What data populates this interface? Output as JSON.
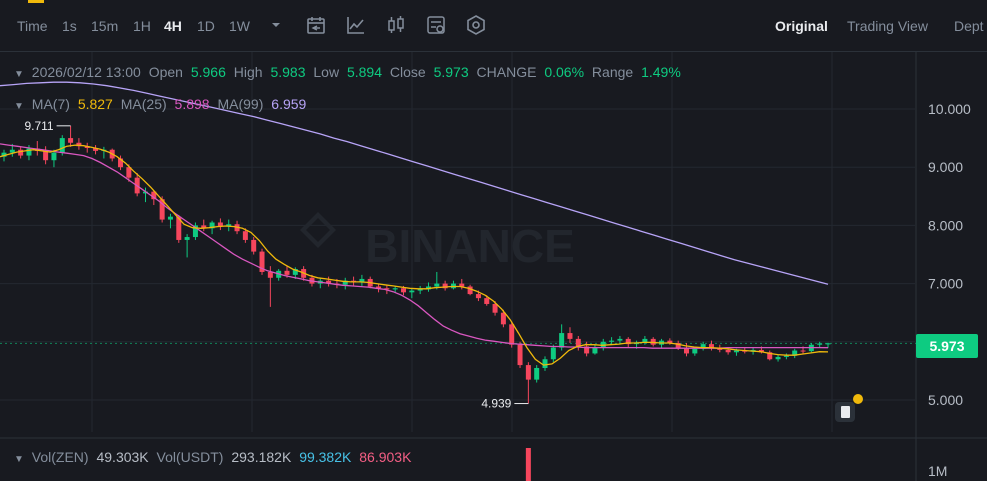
{
  "toolbar": {
    "timeframes": [
      "Time",
      "1s",
      "15m",
      "1H",
      "4H",
      "1D",
      "1W"
    ],
    "active_timeframe": "4H",
    "views": [
      "Original",
      "Trading View",
      "Dept"
    ],
    "active_view": "Original",
    "icons": [
      "dropdown-caret-icon",
      "interval-calendar-icon",
      "indicator-chart-icon",
      "candle-type-icon",
      "settings-sliders-icon",
      "hexagon-settings-icon"
    ]
  },
  "ohlc": {
    "date": "2026/02/12 13:00",
    "open_label": "Open",
    "open": "5.966",
    "high_label": "High",
    "high": "5.983",
    "low_label": "Low",
    "low": "5.894",
    "close_label": "Close",
    "close": "5.973",
    "change_label": "CHANGE",
    "change": "0.06%",
    "range_label": "Range",
    "range": "1.49%"
  },
  "ma": {
    "ma7_label": "MA(7)",
    "ma7": "5.827",
    "ma25_label": "MA(25)",
    "ma25": "5.898",
    "ma99_label": "MA(99)",
    "ma99": "6.959"
  },
  "volume": {
    "zen_label": "Vol(ZEN)",
    "zen": "49.303K",
    "usdt_label": "Vol(USDT)",
    "usdt": "293.182K",
    "ma1": "99.382K",
    "ma2": "86.903K",
    "axis_label": "1M"
  },
  "watermark": "BINANCE",
  "current_price": "5.973",
  "colors": {
    "up": "#0ecb81",
    "down": "#f6465d",
    "ma7": "#f0b90b",
    "ma25": "#d957c0",
    "ma99": "#b7a4f7",
    "bg": "#181a20"
  },
  "chart_data": {
    "type": "line",
    "y_ticks": [
      "10.000",
      "9.000",
      "8.000",
      "7.000",
      "5.000"
    ],
    "ylim": [
      4.6,
      10.6
    ],
    "high_marker": "9.711",
    "low_marker": "4.939",
    "high_value": 9.711,
    "low_value": 4.939,
    "candles": [
      [
        9.18,
        9.3,
        9.1,
        9.25
      ],
      [
        9.25,
        9.4,
        9.18,
        9.3
      ],
      [
        9.3,
        9.35,
        9.15,
        9.2
      ],
      [
        9.2,
        9.38,
        9.12,
        9.32
      ],
      [
        9.32,
        9.45,
        9.2,
        9.28
      ],
      [
        9.28,
        9.36,
        9.05,
        9.12
      ],
      [
        9.12,
        9.3,
        9.0,
        9.25
      ],
      [
        9.25,
        9.55,
        9.2,
        9.5
      ],
      [
        9.5,
        9.711,
        9.35,
        9.42
      ],
      [
        9.42,
        9.5,
        9.3,
        9.36
      ],
      [
        9.36,
        9.42,
        9.25,
        9.33
      ],
      [
        9.33,
        9.38,
        9.22,
        9.28
      ],
      [
        9.28,
        9.35,
        9.15,
        9.3
      ],
      [
        9.3,
        9.32,
        9.1,
        9.15
      ],
      [
        9.15,
        9.2,
        8.95,
        9.0
      ],
      [
        9.0,
        9.05,
        8.75,
        8.82
      ],
      [
        8.82,
        8.9,
        8.5,
        8.55
      ],
      [
        8.55,
        8.65,
        8.4,
        8.58
      ],
      [
        8.58,
        8.6,
        8.35,
        8.45
      ],
      [
        8.45,
        8.5,
        8.05,
        8.1
      ],
      [
        8.1,
        8.2,
        7.95,
        8.15
      ],
      [
        8.15,
        8.18,
        7.7,
        7.75
      ],
      [
        7.75,
        7.85,
        7.45,
        7.8
      ],
      [
        7.8,
        8.05,
        7.75,
        8.0
      ],
      [
        8.0,
        8.1,
        7.9,
        7.95
      ],
      [
        7.95,
        8.08,
        7.85,
        8.05
      ],
      [
        8.05,
        8.12,
        7.92,
        7.98
      ],
      [
        7.98,
        8.1,
        7.9,
        8.02
      ],
      [
        8.02,
        8.08,
        7.85,
        7.9
      ],
      [
        7.9,
        7.95,
        7.7,
        7.75
      ],
      [
        7.75,
        7.8,
        7.5,
        7.55
      ],
      [
        7.55,
        7.6,
        7.15,
        7.2
      ],
      [
        7.2,
        7.3,
        6.6,
        7.1
      ],
      [
        7.1,
        7.25,
        7.05,
        7.22
      ],
      [
        7.22,
        7.3,
        7.1,
        7.15
      ],
      [
        7.15,
        7.28,
        7.08,
        7.25
      ],
      [
        7.25,
        7.3,
        7.05,
        7.1
      ],
      [
        7.1,
        7.15,
        6.95,
        7.0
      ],
      [
        7.0,
        7.1,
        6.92,
        7.05
      ],
      [
        7.05,
        7.12,
        6.95,
        7.0
      ],
      [
        7.0,
        7.08,
        6.92,
        6.98
      ],
      [
        6.98,
        7.1,
        6.9,
        7.05
      ],
      [
        7.05,
        7.12,
        6.95,
        7.02
      ],
      [
        7.02,
        7.15,
        6.96,
        7.08
      ],
      [
        7.08,
        7.12,
        6.92,
        6.95
      ],
      [
        6.95,
        7.0,
        6.85,
        6.92
      ],
      [
        6.92,
        6.98,
        6.82,
        6.9
      ],
      [
        6.9,
        6.95,
        6.85,
        6.92
      ],
      [
        6.92,
        6.96,
        6.8,
        6.85
      ],
      [
        6.85,
        6.92,
        6.75,
        6.88
      ],
      [
        6.88,
        6.96,
        6.82,
        6.9
      ],
      [
        6.9,
        7.02,
        6.86,
        6.95
      ],
      [
        6.95,
        7.2,
        6.9,
        7.0
      ],
      [
        7.0,
        7.05,
        6.88,
        6.92
      ],
      [
        6.92,
        7.05,
        6.9,
        7.0
      ],
      [
        7.0,
        7.08,
        6.9,
        6.95
      ],
      [
        6.95,
        6.98,
        6.8,
        6.82
      ],
      [
        6.82,
        6.88,
        6.7,
        6.75
      ],
      [
        6.75,
        6.8,
        6.62,
        6.65
      ],
      [
        6.65,
        6.7,
        6.45,
        6.5
      ],
      [
        6.5,
        6.55,
        6.25,
        6.3
      ],
      [
        6.3,
        6.35,
        5.9,
        5.95
      ],
      [
        5.95,
        6.0,
        5.55,
        5.6
      ],
      [
        5.6,
        5.65,
        4.939,
        5.35
      ],
      [
        5.35,
        5.6,
        5.3,
        5.55
      ],
      [
        5.55,
        5.75,
        5.5,
        5.7
      ],
      [
        5.7,
        5.95,
        5.65,
        5.9
      ],
      [
        5.9,
        6.3,
        5.85,
        6.15
      ],
      [
        6.15,
        6.25,
        5.98,
        6.05
      ],
      [
        6.05,
        6.1,
        5.85,
        5.92
      ],
      [
        5.92,
        6.0,
        5.75,
        5.8
      ],
      [
        5.8,
        5.95,
        5.78,
        5.9
      ],
      [
        5.9,
        6.05,
        5.85,
        6.0
      ],
      [
        6.0,
        6.08,
        5.95,
        6.02
      ],
      [
        6.02,
        6.1,
        5.96,
        6.05
      ],
      [
        6.05,
        6.08,
        5.9,
        5.96
      ],
      [
        5.96,
        6.02,
        5.88,
        5.99
      ],
      [
        5.99,
        6.1,
        5.95,
        6.05
      ],
      [
        6.05,
        6.08,
        5.92,
        5.95
      ],
      [
        5.95,
        6.05,
        5.9,
        6.02
      ],
      [
        6.02,
        6.06,
        5.95,
        5.98
      ],
      [
        5.98,
        6.02,
        5.86,
        5.9
      ],
      [
        5.9,
        5.98,
        5.75,
        5.8
      ],
      [
        5.8,
        5.9,
        5.76,
        5.88
      ],
      [
        5.88,
        6.0,
        5.85,
        5.96
      ],
      [
        5.96,
        6.02,
        5.85,
        5.9
      ],
      [
        5.9,
        5.95,
        5.82,
        5.86
      ],
      [
        5.86,
        5.9,
        5.78,
        5.82
      ],
      [
        5.82,
        5.88,
        5.76,
        5.85
      ],
      [
        5.85,
        5.9,
        5.8,
        5.83
      ],
      [
        5.83,
        5.9,
        5.78,
        5.86
      ],
      [
        5.86,
        5.92,
        5.8,
        5.82
      ],
      [
        5.82,
        5.85,
        5.68,
        5.7
      ],
      [
        5.7,
        5.78,
        5.66,
        5.74
      ],
      [
        5.74,
        5.8,
        5.7,
        5.76
      ],
      [
        5.76,
        5.88,
        5.72,
        5.85
      ],
      [
        5.85,
        5.92,
        5.8,
        5.84
      ],
      [
        5.84,
        5.98,
        5.82,
        5.95
      ],
      [
        5.95,
        6.0,
        5.9,
        5.97
      ],
      [
        5.966,
        5.983,
        5.894,
        5.973
      ]
    ],
    "series": [
      {
        "name": "MA(99)",
        "values": [
          10.4,
          10.42,
          10.44,
          10.45,
          10.46,
          10.46,
          10.45,
          10.43,
          10.4,
          10.36,
          10.32,
          10.27,
          10.22,
          10.17,
          10.12,
          10.07,
          10.02,
          9.97,
          9.92,
          9.87,
          9.81,
          9.75,
          9.69,
          9.63,
          9.57,
          9.5,
          9.44,
          9.37,
          9.3,
          9.23,
          9.16,
          9.09,
          9.02,
          8.95,
          8.88,
          8.81,
          8.74,
          8.67,
          8.6,
          8.53,
          8.46,
          8.39,
          8.32,
          8.25,
          8.18,
          8.11,
          8.04,
          7.97,
          7.9,
          7.83,
          7.76,
          7.69,
          7.62,
          7.55,
          7.48,
          7.41,
          7.35,
          7.29,
          7.23,
          7.17,
          7.11,
          7.05,
          6.99
        ]
      },
      {
        "name": "MA(25)",
        "values": [
          9.4,
          9.38,
          9.36,
          9.34,
          9.32,
          9.3,
          9.28,
          9.26,
          9.24,
          9.22,
          9.2,
          9.15,
          9.08,
          9.0,
          8.92,
          8.82,
          8.72,
          8.62,
          8.52,
          8.42,
          8.3,
          8.2,
          8.1,
          8.0,
          7.9,
          7.8,
          7.7,
          7.6,
          7.5,
          7.42,
          7.35,
          7.28,
          7.22,
          7.18,
          7.14,
          7.11,
          7.08,
          7.05,
          7.03,
          7.01,
          6.99,
          6.97,
          6.96,
          6.95,
          6.94,
          6.92,
          6.9,
          6.86,
          6.8,
          6.72,
          6.62,
          6.5,
          6.38,
          6.27,
          6.2,
          6.14,
          6.1,
          6.06,
          6.03,
          6.01,
          5.99,
          5.97,
          5.96,
          5.95,
          5.94,
          5.93,
          5.92,
          5.92,
          5.91,
          5.91,
          5.9,
          5.9,
          5.9,
          5.9,
          5.9,
          5.9,
          5.9,
          5.9,
          5.89,
          5.89,
          5.89,
          5.89,
          5.89,
          5.89,
          5.89,
          5.89,
          5.89,
          5.9,
          5.9,
          5.9,
          5.9,
          5.9,
          5.9,
          5.9,
          5.9,
          5.9,
          5.9,
          5.9,
          5.9,
          5.898
        ]
      },
      {
        "name": "MA(7)",
        "values": [
          9.18,
          9.22,
          9.26,
          9.28,
          9.3,
          9.28,
          9.26,
          9.3,
          9.36,
          9.38,
          9.37,
          9.34,
          9.31,
          9.26,
          9.18,
          9.07,
          8.93,
          8.8,
          8.66,
          8.5,
          8.34,
          8.18,
          8.02,
          7.96,
          7.95,
          7.96,
          7.98,
          7.99,
          7.98,
          7.95,
          7.88,
          7.74,
          7.56,
          7.42,
          7.33,
          7.25,
          7.2,
          7.14,
          7.1,
          7.08,
          7.06,
          7.04,
          7.03,
          7.03,
          7.02,
          7.0,
          6.98,
          6.96,
          6.94,
          6.92,
          6.91,
          6.91,
          6.93,
          6.94,
          6.95,
          6.95,
          6.92,
          6.87,
          6.8,
          6.7,
          6.56,
          6.38,
          6.15,
          5.9,
          5.7,
          5.6,
          5.62,
          5.72,
          5.85,
          5.92,
          5.95,
          5.95,
          5.94,
          5.95,
          5.96,
          5.98,
          5.98,
          5.99,
          5.99,
          5.98,
          5.98,
          5.96,
          5.93,
          5.91,
          5.9,
          5.9,
          5.89,
          5.88,
          5.86,
          5.85,
          5.84,
          5.83,
          5.8,
          5.78,
          5.77,
          5.77,
          5.79,
          5.81,
          5.83,
          5.827
        ]
      }
    ],
    "volume_values": [
      3.0
    ]
  }
}
